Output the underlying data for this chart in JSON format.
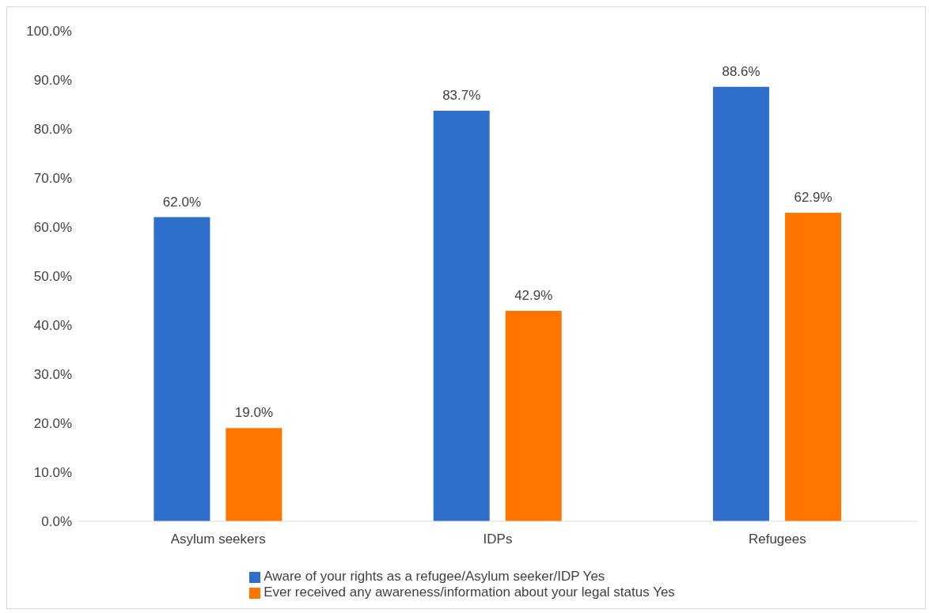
{
  "chart_data": {
    "type": "bar",
    "categories": [
      "Asylum seekers",
      "IDPs",
      "Refugees"
    ],
    "series": [
      {
        "name": "Aware of your rights as a refugee/Asylum seeker/IDP Yes",
        "color": "#2e6fcb",
        "values": [
          62.0,
          83.7,
          88.6
        ],
        "value_labels": [
          "62.0%",
          "83.7%",
          "88.6%"
        ]
      },
      {
        "name": "Ever received any awareness/information about your legal status Yes",
        "color": "#ff7500",
        "values": [
          19.0,
          42.9,
          62.9
        ],
        "value_labels": [
          "19.0%",
          "42.9%",
          "62.9%"
        ]
      }
    ],
    "ylim": [
      0,
      100
    ],
    "yticks": [
      {
        "value": 0,
        "label": "0.0%"
      },
      {
        "value": 10,
        "label": "10.0%"
      },
      {
        "value": 20,
        "label": "20.0%"
      },
      {
        "value": 30,
        "label": "30.0%"
      },
      {
        "value": 40,
        "label": "40.0%"
      },
      {
        "value": 50,
        "label": "50.0%"
      },
      {
        "value": 60,
        "label": "60.0%"
      },
      {
        "value": 70,
        "label": "70.0%"
      },
      {
        "value": 80,
        "label": "80.0%"
      },
      {
        "value": 90,
        "label": "90.0%"
      },
      {
        "value": 100,
        "label": "100.0%"
      }
    ],
    "grid": false,
    "legend": "bottom"
  }
}
